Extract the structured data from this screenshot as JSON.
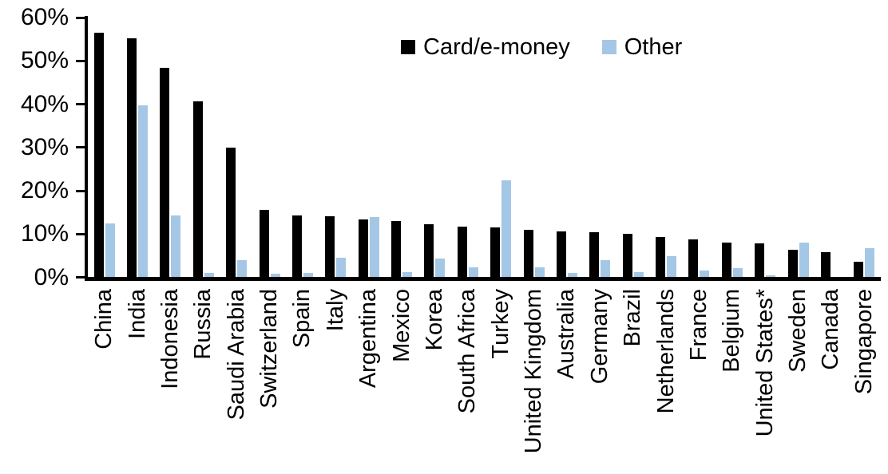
{
  "chart_data": {
    "type": "bar",
    "title": "",
    "xlabel": "",
    "ylabel": "",
    "ylim": [
      0,
      60
    ],
    "grid": false,
    "legend_position": "top-center",
    "y_tick_labels": [
      "0%",
      "10%",
      "20%",
      "30%",
      "40%",
      "50%",
      "60%"
    ],
    "y_tick_values": [
      0,
      10,
      20,
      30,
      40,
      50,
      60
    ],
    "categories": [
      "China",
      "India",
      "Indonesia",
      "Russia",
      "Saudi Arabia",
      "Switzerland",
      "Spain",
      "Italy",
      "Argentina",
      "Mexico",
      "Korea",
      "South Africa",
      "Turkey",
      "United Kingdom",
      "Australia",
      "Germany",
      "Brazil",
      "Netherlands",
      "France",
      "Belgium",
      "United States*",
      "Sweden",
      "Canada",
      "Singapore"
    ],
    "series": [
      {
        "name": "Card/e-money",
        "color": "#000000",
        "values": [
          56.5,
          55.2,
          48.3,
          40.6,
          29.9,
          15.6,
          14.2,
          14.0,
          13.3,
          12.9,
          12.1,
          11.7,
          11.5,
          10.9,
          10.6,
          10.4,
          9.9,
          9.2,
          8.6,
          8.0,
          7.8,
          6.3,
          5.8,
          3.6
        ]
      },
      {
        "name": "Other",
        "color": "#A4C7E6",
        "values": [
          12.3,
          39.7,
          14.3,
          1.0,
          3.8,
          0.8,
          1.0,
          4.5,
          13.8,
          1.2,
          4.3,
          2.3,
          22.4,
          2.2,
          1.0,
          3.8,
          1.1,
          4.8,
          1.5,
          2.0,
          0.3,
          8.0,
          0.0,
          6.7
        ]
      }
    ]
  }
}
